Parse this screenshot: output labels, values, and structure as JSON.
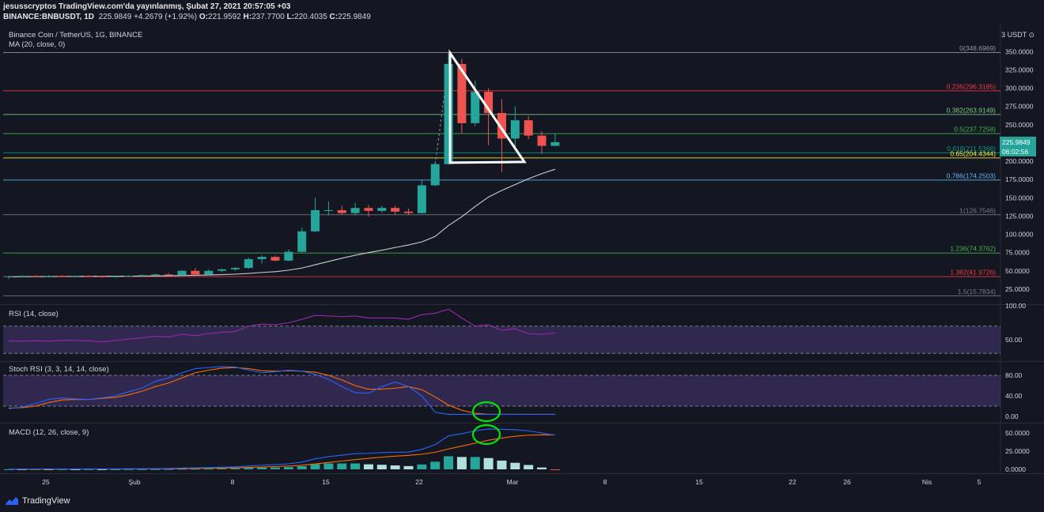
{
  "header": {
    "line1": "jesusscryptos TradingView.com'da yayınlanmış, Şubat 27, 2021 20:57:05 +03",
    "symbol": "BINANCE:BNBUSDT, 1D",
    "last": "225.9849",
    "change": "+4.2679 (+1.92%)",
    "o": "221.9592",
    "h": "237.7700",
    "l": "220.4035",
    "c": "225.9849",
    "o_label": "O:",
    "h_label": "H:",
    "l_label": "L:",
    "c_label": "C:"
  },
  "footer": {
    "brand": "TradingView"
  },
  "colors": {
    "bg": "#131722",
    "up": "#26a69a",
    "down": "#ef5350",
    "rsi": "#9c27b0",
    "stoch_k": "#2962ff",
    "stoch_d": "#ff6d00",
    "macd": "#2962ff",
    "signal": "#ff6d00",
    "ma": "#e0e0e0",
    "highlight": "#00e600",
    "triangle": "#ffffff"
  },
  "chart_data": {
    "type": "candlestick",
    "title": "Binance Coin / TetherUS, 1G, BINANCE",
    "indicator_label": "MA (20, close, 0)",
    "currency_label": "3 USDT ⊙",
    "price_axis": {
      "min": 0,
      "max": 375,
      "ticks": [
        "350.0000",
        "325.0000",
        "300.0000",
        "275.0000",
        "250.0000",
        "225.0000",
        "200.0000",
        "175.0000",
        "150.0000",
        "125.0000",
        "100.0000",
        "75.0000",
        "50.0000",
        "25.0000"
      ]
    },
    "current_price_tag": "225.9849",
    "countdown_tag": "06:02:56",
    "x_ticks": [
      "25",
      "Şub",
      "8",
      "15",
      "22",
      "Mar",
      "8",
      "15",
      "22",
      "26",
      "Nis",
      "5"
    ],
    "candles": [
      {
        "o": 41.5,
        "h": 43,
        "l": 39,
        "c": 42.5
      },
      {
        "o": 42.5,
        "h": 44,
        "l": 41,
        "c": 43
      },
      {
        "o": 43,
        "h": 44,
        "l": 41.5,
        "c": 42.5
      },
      {
        "o": 42.5,
        "h": 44,
        "l": 41,
        "c": 43
      },
      {
        "o": 43,
        "h": 44,
        "l": 41.5,
        "c": 42.4
      },
      {
        "o": 42.4,
        "h": 43.5,
        "l": 41,
        "c": 43
      },
      {
        "o": 43,
        "h": 44,
        "l": 41.5,
        "c": 42.6
      },
      {
        "o": 42.6,
        "h": 43.5,
        "l": 40.5,
        "c": 41.5
      },
      {
        "o": 41.5,
        "h": 43,
        "l": 40.5,
        "c": 42.5
      },
      {
        "o": 42.5,
        "h": 44,
        "l": 41.5,
        "c": 43.2
      },
      {
        "o": 43.2,
        "h": 45,
        "l": 42,
        "c": 44
      },
      {
        "o": 44,
        "h": 46,
        "l": 43,
        "c": 45
      },
      {
        "o": 45,
        "h": 47,
        "l": 43,
        "c": 44
      },
      {
        "o": 44,
        "h": 51,
        "l": 43,
        "c": 50
      },
      {
        "o": 50,
        "h": 54,
        "l": 43,
        "c": 45
      },
      {
        "o": 45,
        "h": 52,
        "l": 44,
        "c": 50
      },
      {
        "o": 50,
        "h": 53,
        "l": 48,
        "c": 52
      },
      {
        "o": 52,
        "h": 55,
        "l": 50,
        "c": 54
      },
      {
        "o": 54,
        "h": 68,
        "l": 53,
        "c": 66
      },
      {
        "o": 66,
        "h": 71,
        "l": 60,
        "c": 69
      },
      {
        "o": 69,
        "h": 71,
        "l": 63,
        "c": 64
      },
      {
        "o": 64,
        "h": 79,
        "l": 63,
        "c": 76
      },
      {
        "o": 76,
        "h": 109,
        "l": 75,
        "c": 104
      },
      {
        "o": 104,
        "h": 150,
        "l": 103,
        "c": 133
      },
      {
        "o": 133,
        "h": 145,
        "l": 126,
        "c": 133
      },
      {
        "o": 133,
        "h": 139,
        "l": 127,
        "c": 129
      },
      {
        "o": 129,
        "h": 143,
        "l": 126,
        "c": 136
      },
      {
        "o": 136,
        "h": 140,
        "l": 124,
        "c": 132
      },
      {
        "o": 132,
        "h": 139,
        "l": 130,
        "c": 136
      },
      {
        "o": 136,
        "h": 139,
        "l": 127,
        "c": 131
      },
      {
        "o": 131,
        "h": 135,
        "l": 126,
        "c": 129
      },
      {
        "o": 129,
        "h": 175,
        "l": 128,
        "c": 167
      },
      {
        "o": 167,
        "h": 200,
        "l": 166,
        "c": 196
      },
      {
        "o": 196,
        "h": 348,
        "l": 195,
        "c": 333
      },
      {
        "o": 333,
        "h": 340,
        "l": 238,
        "c": 252
      },
      {
        "o": 252,
        "h": 310,
        "l": 248,
        "c": 295
      },
      {
        "o": 295,
        "h": 300,
        "l": 222,
        "c": 266
      },
      {
        "o": 266,
        "h": 285,
        "l": 185,
        "c": 231
      },
      {
        "o": 231,
        "h": 275,
        "l": 215,
        "c": 256
      },
      {
        "o": 256,
        "h": 262,
        "l": 230,
        "c": 235
      },
      {
        "o": 235,
        "h": 241,
        "l": 210,
        "c": 221
      },
      {
        "o": 221,
        "h": 237.77,
        "l": 220.4,
        "c": 225.98
      }
    ],
    "ma": [
      41.8,
      42,
      42.1,
      42.2,
      42.3,
      42.4,
      42.5,
      42.5,
      42.6,
      42.7,
      42.8,
      43,
      43.2,
      43.6,
      43.9,
      44.3,
      44.8,
      45.4,
      46.4,
      47.7,
      48.9,
      50.8,
      53.8,
      58.3,
      62.8,
      67.2,
      71.3,
      74.9,
      78.2,
      81.9,
      85.3,
      89.6,
      97,
      112,
      124,
      138,
      151,
      160,
      168,
      176,
      183,
      189
    ],
    "fib_levels": [
      {
        "label": "0(348.6969)",
        "value": 348.6969,
        "color": "#9598a1"
      },
      {
        "label": "0.236(296.3185)",
        "value": 296.3185,
        "color": "#f23645"
      },
      {
        "label": "0.382(263.9149)",
        "value": 263.9149,
        "color": "#81c784"
      },
      {
        "label": "0.5(237.7258)",
        "value": 237.7258,
        "color": "#4caf50"
      },
      {
        "label": "0.618(211.5366)",
        "value": 211.5366,
        "color": "#089981"
      },
      {
        "label": "0.65(204.4344)",
        "value": 204.4344,
        "color": "#ffeb3b"
      },
      {
        "label": "0.786(174.2503)",
        "value": 174.2503,
        "color": "#64b5f6"
      },
      {
        "label": "1(126.7546)",
        "value": 126.7546,
        "color": "#787b86"
      },
      {
        "label": "1.236(74.3762)",
        "value": 74.3762,
        "color": "#4caf50"
      },
      {
        "label": "1.382(41.9726)",
        "value": 41.9726,
        "color": "#f23645"
      },
      {
        "label": "1.5(15.7834)",
        "value": 15.7834,
        "color": "#787b86"
      }
    ],
    "rsi": {
      "label": "RSI (14, close)",
      "axis_ticks": [
        "100.00",
        "50.00"
      ],
      "upper": 70,
      "lower": 30,
      "values": [
        48,
        48,
        48.5,
        48,
        49,
        49,
        48.5,
        47,
        49,
        51,
        53,
        55,
        54,
        58,
        56,
        59,
        61,
        62,
        70,
        73,
        72,
        75,
        80,
        86,
        85,
        84,
        85,
        82,
        82,
        82,
        80,
        87,
        89,
        95,
        82,
        70,
        72,
        64,
        66,
        59,
        58,
        60
      ]
    },
    "stoch_rsi": {
      "label": "Stoch RSI (3, 3, 14, 14, close)",
      "axis_ticks": [
        "80.00",
        "40.00",
        "0.00"
      ],
      "upper": 80,
      "lower": 20,
      "k": [
        15,
        18,
        25,
        33,
        36,
        34,
        33,
        36,
        40,
        48,
        55,
        68,
        75,
        85,
        93,
        95,
        97,
        96,
        90,
        85,
        87,
        90,
        88,
        82,
        72,
        58,
        46,
        45,
        58,
        67,
        58,
        40,
        8,
        4,
        4,
        4,
        4,
        4,
        4,
        4,
        4,
        4
      ],
      "d": [
        16,
        17,
        20,
        27,
        32,
        33,
        33,
        35,
        37,
        42,
        49,
        58,
        65,
        75,
        85,
        90,
        94,
        95,
        93,
        89,
        88,
        89,
        88,
        86,
        80,
        71,
        60,
        53,
        53,
        55,
        58,
        52,
        38,
        22,
        12,
        6,
        4,
        4,
        4,
        4,
        4,
        4
      ]
    },
    "macd": {
      "label": "MACD (12, 26, close, 9)",
      "axis_ticks": [
        "50.0000",
        "25.0000",
        "0.0000"
      ],
      "macd": [
        0.2,
        0.3,
        0.4,
        0.4,
        0.5,
        0.5,
        0.6,
        0.6,
        0.6,
        0.7,
        0.8,
        1,
        1.2,
        1.8,
        2,
        2.4,
        2.9,
        3.5,
        4.6,
        5.7,
        6.4,
        7.6,
        10,
        14.5,
        17.5,
        19.5,
        21.5,
        22,
        23,
        23.5,
        23.7,
        27.5,
        34,
        46,
        49,
        53,
        55.5,
        55,
        54.5,
        53,
        50,
        47
      ],
      "signal": [
        0.1,
        0.2,
        0.2,
        0.3,
        0.3,
        0.4,
        0.4,
        0.5,
        0.5,
        0.5,
        0.6,
        0.7,
        0.8,
        1,
        1.2,
        1.5,
        1.8,
        2.1,
        2.6,
        3.2,
        3.8,
        4.5,
        5.6,
        7.4,
        9.4,
        11.4,
        13.4,
        15.1,
        16.7,
        18.1,
        19.2,
        20.8,
        23.5,
        28,
        32,
        36,
        40,
        43,
        45.5,
        47,
        47.5,
        47.3
      ]
    },
    "drawings": {
      "triangle": "descending triangle",
      "circles": 2
    }
  }
}
